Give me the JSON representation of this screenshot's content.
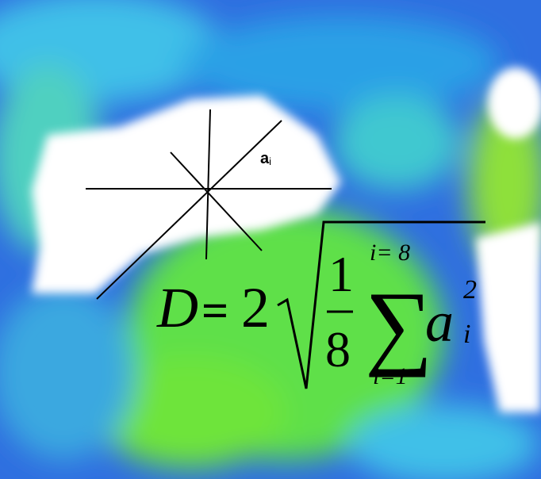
{
  "label": {
    "vector": "a",
    "index": "i"
  },
  "formula": {
    "lhs": "D",
    "equals": "=",
    "coefficient": "2",
    "numerator": "1",
    "denominator": "8",
    "sum_symbol": "∑",
    "sum_upper": "i= 8",
    "sum_lower": "i=1",
    "term": "a",
    "exponent": "2",
    "subscript": "i"
  }
}
